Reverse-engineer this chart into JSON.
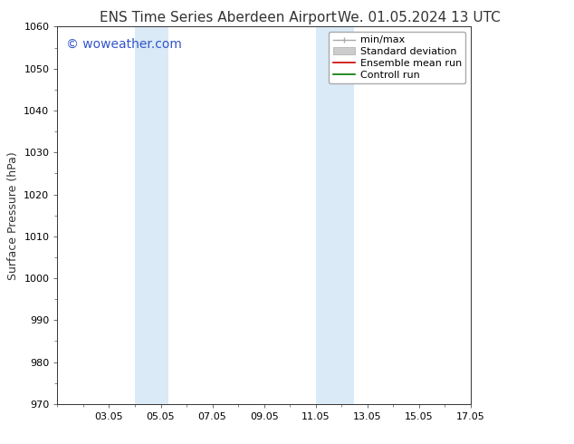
{
  "title_left": "ENS Time Series Aberdeen Airport",
  "title_right": "We. 01.05.2024 13 UTC",
  "ylabel": "Surface Pressure (hPa)",
  "ylim": [
    970,
    1060
  ],
  "yticks": [
    970,
    980,
    990,
    1000,
    1010,
    1020,
    1030,
    1040,
    1050,
    1060
  ],
  "x_min": 1.0,
  "x_max": 17.0,
  "xtick_labels": [
    "03.05",
    "05.05",
    "07.05",
    "09.05",
    "11.05",
    "13.05",
    "15.05",
    "17.05"
  ],
  "xtick_positions": [
    3,
    5,
    7,
    9,
    11,
    13,
    15,
    17
  ],
  "shaded_bands": [
    {
      "x_start": 4.0,
      "x_end": 5.3,
      "color": "#daeaf7"
    },
    {
      "x_start": 11.0,
      "x_end": 12.5,
      "color": "#daeaf7"
    }
  ],
  "watermark_text": "© woweather.com",
  "watermark_color": "#3355cc",
  "watermark_fontsize": 10,
  "legend_items": [
    {
      "label": "min/max",
      "color": "#aaaaaa",
      "linestyle": "-",
      "linewidth": 1.0,
      "type": "errbar"
    },
    {
      "label": "Standard deviation",
      "color": "#cccccc",
      "linestyle": "-",
      "linewidth": 7,
      "type": "patch"
    },
    {
      "label": "Ensemble mean run",
      "color": "#cc0000",
      "linestyle": "-",
      "linewidth": 1.2,
      "type": "line"
    },
    {
      "label": "Controll run",
      "color": "#007700",
      "linestyle": "-",
      "linewidth": 1.2,
      "type": "line"
    }
  ],
  "bg_color": "#ffffff",
  "plot_bg_color": "#ffffff",
  "title_fontsize": 11,
  "ylabel_fontsize": 9,
  "tick_fontsize": 8,
  "legend_fontsize": 8
}
